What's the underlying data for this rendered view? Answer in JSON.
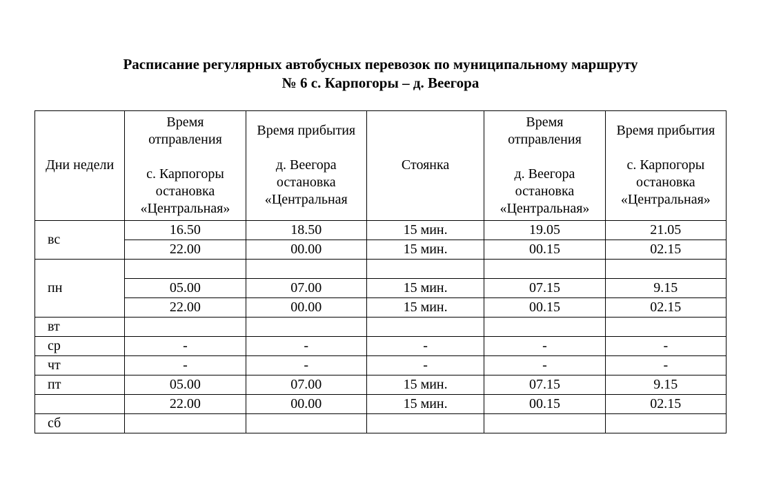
{
  "title": {
    "line1": "Расписание регулярных автобусных перевозок по муниципальному маршруту",
    "line2": "№ 6 с. Карпогоры – д. Веегора"
  },
  "table": {
    "headers": {
      "col1": "Дни недели",
      "col2_top": "Время отправления",
      "col2_bottom": "с. Карпогоры остановка «Центральная»",
      "col3_top": "Время прибытия",
      "col3_bottom": "д. Веегора остановка «Центральная",
      "col4": "Стоянка",
      "col5_top": "Время отправления",
      "col5_bottom": "д. Веегора остановка «Центральная»",
      "col6_top": "Время прибытия",
      "col6_bottom": "с. Карпогоры остановка «Центральная»"
    },
    "rows": [
      {
        "day": "вс",
        "rowspan": 2,
        "dep1": "16.50",
        "arr1": "18.50",
        "stop": "15 мин.",
        "dep2": "19.05",
        "arr2": "21.05"
      },
      {
        "day": null,
        "dep1": "22.00",
        "arr1": "00.00",
        "stop": "15 мин.",
        "dep2": "00.15",
        "arr2": "02.15"
      },
      {
        "day": "пн",
        "rowspan": 3,
        "dep1": "",
        "arr1": "",
        "stop": "",
        "dep2": "",
        "arr2": ""
      },
      {
        "day": null,
        "dep1": "05.00",
        "arr1": "07.00",
        "stop": "15 мин.",
        "dep2": "07.15",
        "arr2": "9.15"
      },
      {
        "day": null,
        "dep1": "22.00",
        "arr1": "00.00",
        "stop": "15 мин.",
        "dep2": "00.15",
        "arr2": "02.15"
      },
      {
        "day": "вт",
        "rowspan": 1,
        "dep1": "",
        "arr1": "",
        "stop": "",
        "dep2": "",
        "arr2": ""
      },
      {
        "day": "ср",
        "rowspan": 1,
        "dep1": "-",
        "arr1": "-",
        "stop": "-",
        "dep2": "-",
        "arr2": "-"
      },
      {
        "day": "чт",
        "rowspan": 1,
        "dep1": "-",
        "arr1": "-",
        "stop": "-",
        "dep2": "-",
        "arr2": "-"
      },
      {
        "day": "пт",
        "rowspan": 1,
        "dep1": "05.00",
        "arr1": "07.00",
        "stop": "15 мин.",
        "dep2": "07.15",
        "arr2": "9.15"
      },
      {
        "day": "",
        "rowspan": 1,
        "dep1": "22.00",
        "arr1": "00.00",
        "stop": "15 мин.",
        "dep2": "00.15",
        "arr2": "02.15"
      },
      {
        "day": "сб",
        "rowspan": 1,
        "dep1": "",
        "arr1": "",
        "stop": "",
        "dep2": "",
        "arr2": ""
      }
    ]
  },
  "styling": {
    "background_color": "#ffffff",
    "border_color": "#000000",
    "font_family": "Times New Roman",
    "title_fontsize": 21,
    "body_fontsize": 20,
    "title_fontweight": "bold"
  }
}
